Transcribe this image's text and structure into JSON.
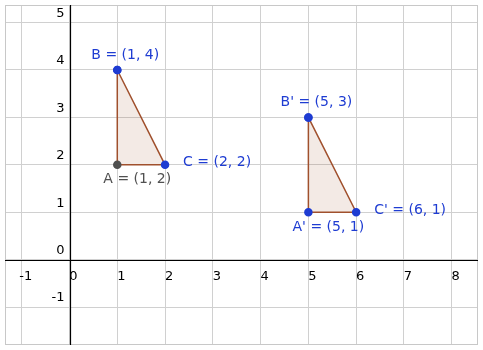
{
  "chart_data": {
    "type": "scatter",
    "xlim": [
      -1.35,
      8.55
    ],
    "ylim": [
      -1.8,
      5.37
    ],
    "xticks": [
      -1,
      0,
      1,
      2,
      3,
      4,
      5,
      6,
      7,
      8
    ],
    "yticks": [
      -1,
      0,
      1,
      2,
      3,
      4,
      5
    ],
    "grid": true,
    "series": [
      {
        "color": "#a0502d",
        "x": [
          1,
          1,
          2
        ],
        "y": [
          4,
          2,
          2
        ],
        "labels": [
          "B = (1, 4)",
          "A = (1, 2)",
          "C = (2, 2)"
        ],
        "colors": [
          "#1e3cd2",
          "#505050",
          "#1e3cd2"
        ]
      },
      {
        "color": "#a0502d",
        "x": [
          5,
          5,
          6
        ],
        "y": [
          3,
          1,
          1
        ],
        "labels": [
          "B' = (5, 3)",
          "A' = (5, 1)",
          "C' = (6, 1)"
        ],
        "colors": [
          "#1e3cd2",
          "#1e3cd2",
          "#1e3cd2"
        ]
      }
    ]
  }
}
